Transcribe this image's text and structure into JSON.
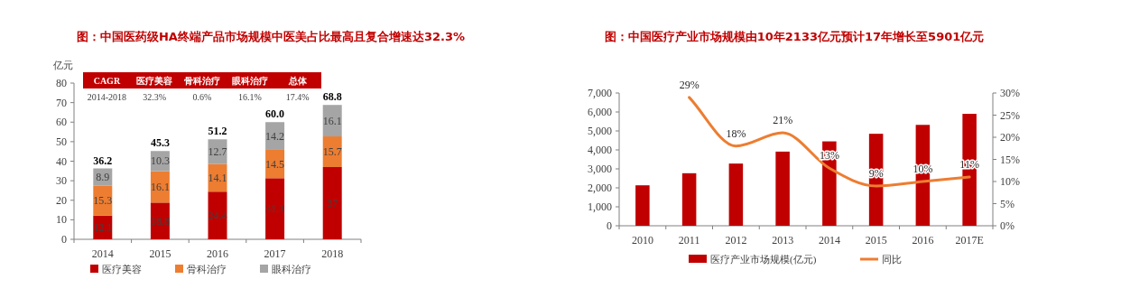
{
  "chart_data": [
    {
      "type": "bar",
      "title": "图：中国医药级HA终端产品市场规模中医美占比最高且复合增速达32.3%",
      "ylabel": "亿元",
      "categories": [
        "2014",
        "2015",
        "2016",
        "2017",
        "2018"
      ],
      "series": [
        {
          "name": "医疗美容",
          "color": "#c00000",
          "values": [
            12.1,
            18.8,
            24.4,
            31.3,
            37
          ]
        },
        {
          "name": "骨科治疗",
          "color": "#ed7d31",
          "values": [
            15.3,
            16.1,
            14.1,
            14.5,
            15.7
          ]
        },
        {
          "name": "眼科治疗",
          "color": "#a5a5a5",
          "values": [
            8.9,
            10.3,
            12.7,
            14.2,
            16.1
          ]
        }
      ],
      "stacked": true,
      "data_labels": true,
      "totals": [
        "36.2",
        "45.3",
        "51.2",
        "60.0",
        "68.8"
      ],
      "ylim": [
        0,
        80
      ],
      "yticks": [
        0,
        10,
        20,
        30,
        40,
        50,
        60,
        70,
        80
      ],
      "legend": "bottom",
      "annotations": [
        "CAGR",
        "医疗美容",
        "骨科治疗",
        "眼科治疗",
        "总体",
        "2014-2018",
        "32.3%",
        "0.6%",
        "16.1%",
        "17.4%"
      ]
    },
    {
      "type": "bar",
      "title": "图：中国医疗产业市场规模由10年2133亿元预计17年增长至5901亿元",
      "categories": [
        "2010",
        "2011",
        "2012",
        "2013",
        "2014",
        "2015",
        "2016",
        "2017E"
      ],
      "series": [
        {
          "name": "医疗产业市场规模(亿元)",
          "color": "#c00000",
          "values": [
            2133,
            2770,
            3280,
            3910,
            4450,
            4850,
            5320,
            5901
          ]
        },
        {
          "name": "同比",
          "type": "line",
          "axis": "y2",
          "color": "#ed7d31",
          "values": [
            null,
            29,
            18,
            21,
            13,
            9,
            10,
            11
          ],
          "value_labels": [
            null,
            "29%",
            "18%",
            "21%",
            "13%",
            "9%",
            "10%",
            "11%"
          ]
        }
      ],
      "ylim": [
        0,
        7000
      ],
      "yticks": [
        0,
        {
          "value": 1000,
          "label": "1,000"
        },
        {
          "value": 2000,
          "label": "2,000"
        },
        {
          "value": 3000,
          "label": "3,000"
        },
        {
          "value": 4000,
          "label": "4,000"
        },
        {
          "value": 5000,
          "label": "5,000"
        },
        {
          "value": 6000,
          "label": "6,000"
        },
        {
          "value": 7000,
          "label": "7,000"
        }
      ],
      "y2lim": [
        0,
        30
      ],
      "y2ticks": [
        {
          "value": 0,
          "label": "0%"
        },
        {
          "value": 5,
          "label": "5%"
        },
        {
          "value": 10,
          "label": "10%"
        },
        {
          "value": 15,
          "label": "15%"
        },
        {
          "value": 20,
          "label": "20%"
        },
        {
          "value": 25,
          "label": "25%"
        },
        {
          "value": 30,
          "label": "30%"
        }
      ],
      "legend": "bottom"
    }
  ]
}
